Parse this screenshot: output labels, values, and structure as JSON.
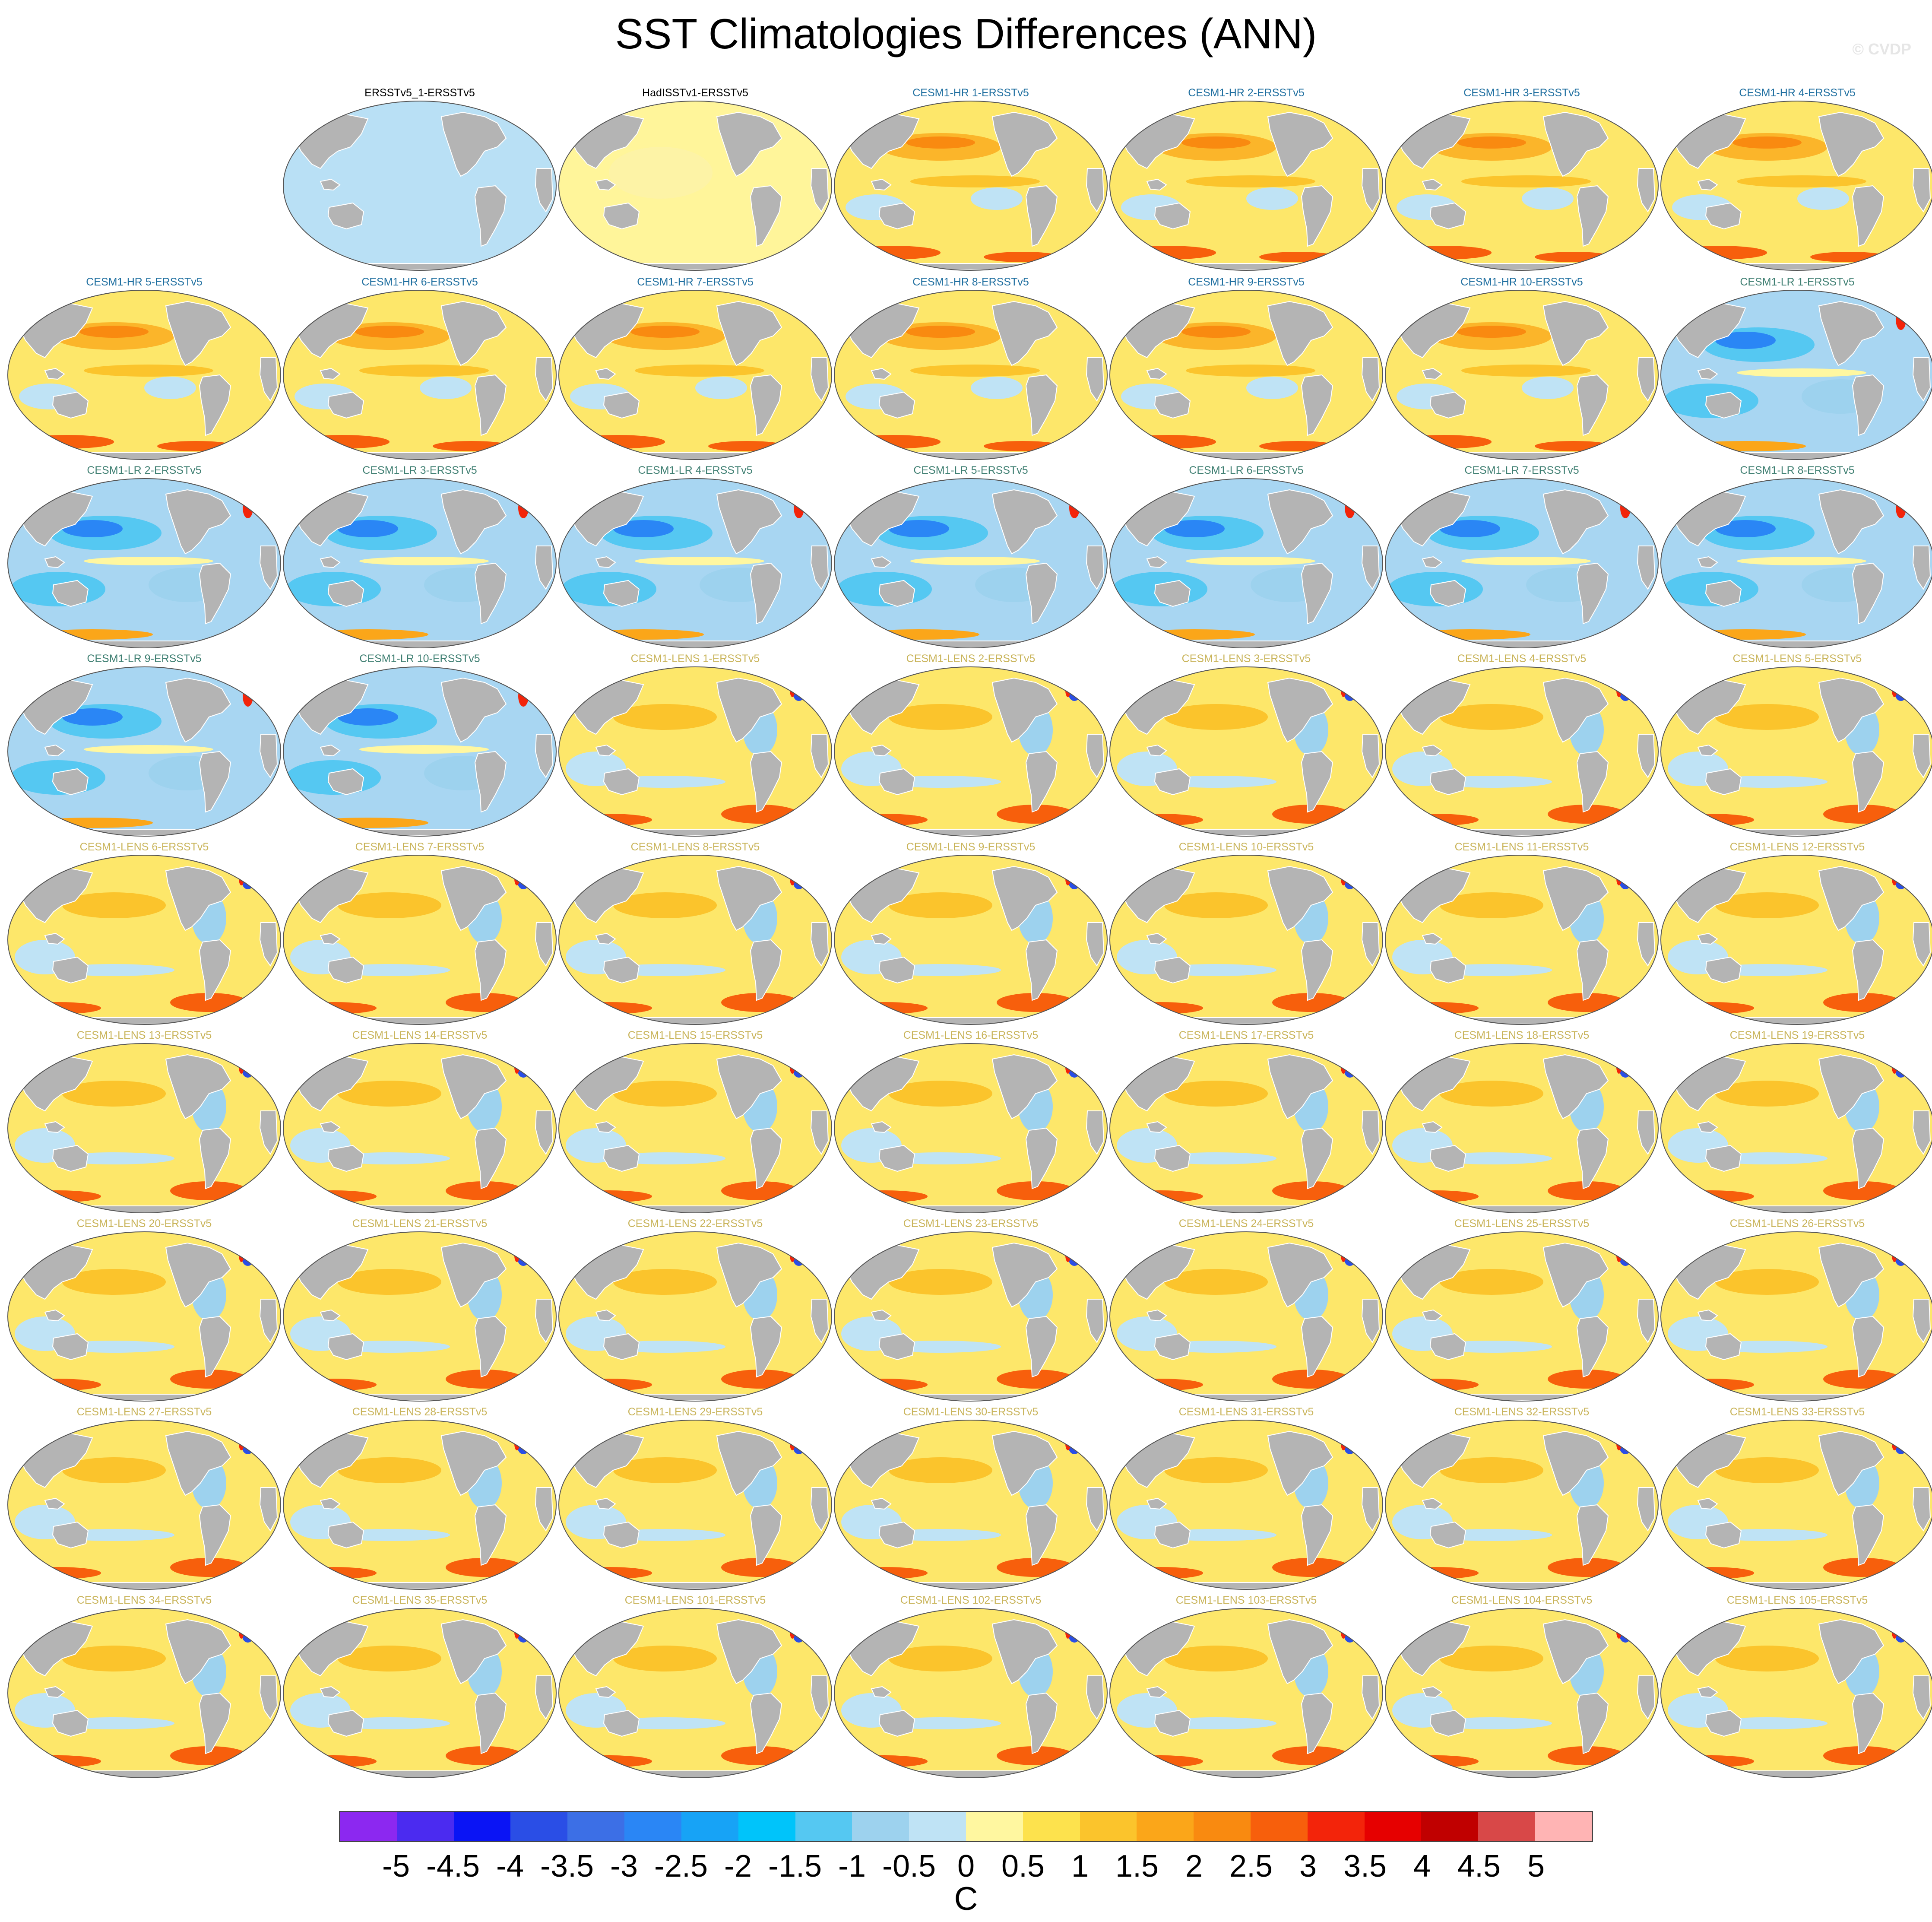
{
  "title": "SST Climatologies Differences (ANN)",
  "watermark": "© CVDP",
  "panel_grid": {
    "columns": 7,
    "rows": 9,
    "first_row_start_column": 1
  },
  "panel_classes": {
    "obs": {
      "title_color": "#000000",
      "ocean_base": "#b9e0f5"
    },
    "obs2": {
      "title_color": "#000000",
      "ocean_base": "#fff59a"
    },
    "hr": {
      "title_color": "#1f6fa0",
      "ocean_base": "#fde76a"
    },
    "lr": {
      "title_color": "#3f7f72",
      "ocean_base": "#a8d6f2"
    },
    "lens": {
      "title_color": "#c9b45a",
      "ocean_base": "#fde76a"
    }
  },
  "panels": [
    {
      "title": "ERSSTv5_1-ERSSTv5",
      "class": "obs"
    },
    {
      "title": "HadISSTv1-ERSSTv5",
      "class": "obs2"
    },
    {
      "title": "CESM1-HR 1-ERSSTv5",
      "class": "hr"
    },
    {
      "title": "CESM1-HR 2-ERSSTv5",
      "class": "hr"
    },
    {
      "title": "CESM1-HR 3-ERSSTv5",
      "class": "hr"
    },
    {
      "title": "CESM1-HR 4-ERSSTv5",
      "class": "hr"
    },
    {
      "title": "CESM1-HR 5-ERSSTv5",
      "class": "hr"
    },
    {
      "title": "CESM1-HR 6-ERSSTv5",
      "class": "hr"
    },
    {
      "title": "CESM1-HR 7-ERSSTv5",
      "class": "hr"
    },
    {
      "title": "CESM1-HR 8-ERSSTv5",
      "class": "hr"
    },
    {
      "title": "CESM1-HR 9-ERSSTv5",
      "class": "hr"
    },
    {
      "title": "CESM1-HR 10-ERSSTv5",
      "class": "hr"
    },
    {
      "title": "CESM1-LR 1-ERSSTv5",
      "class": "lr"
    },
    {
      "title": "CESM1-LR 2-ERSSTv5",
      "class": "lr"
    },
    {
      "title": "CESM1-LR 3-ERSSTv5",
      "class": "lr"
    },
    {
      "title": "CESM1-LR 4-ERSSTv5",
      "class": "lr"
    },
    {
      "title": "CESM1-LR 5-ERSSTv5",
      "class": "lr"
    },
    {
      "title": "CESM1-LR 6-ERSSTv5",
      "class": "lr"
    },
    {
      "title": "CESM1-LR 7-ERSSTv5",
      "class": "lr"
    },
    {
      "title": "CESM1-LR 8-ERSSTv5",
      "class": "lr"
    },
    {
      "title": "CESM1-LR 9-ERSSTv5",
      "class": "lr"
    },
    {
      "title": "CESM1-LR 10-ERSSTv5",
      "class": "lr"
    },
    {
      "title": "CESM1-LENS 1-ERSSTv5",
      "class": "lens"
    },
    {
      "title": "CESM1-LENS 2-ERSSTv5",
      "class": "lens"
    },
    {
      "title": "CESM1-LENS 3-ERSSTv5",
      "class": "lens"
    },
    {
      "title": "CESM1-LENS 4-ERSSTv5",
      "class": "lens"
    },
    {
      "title": "CESM1-LENS 5-ERSSTv5",
      "class": "lens"
    },
    {
      "title": "CESM1-LENS 6-ERSSTv5",
      "class": "lens"
    },
    {
      "title": "CESM1-LENS 7-ERSSTv5",
      "class": "lens"
    },
    {
      "title": "CESM1-LENS 8-ERSSTv5",
      "class": "lens"
    },
    {
      "title": "CESM1-LENS 9-ERSSTv5",
      "class": "lens"
    },
    {
      "title": "CESM1-LENS 10-ERSSTv5",
      "class": "lens"
    },
    {
      "title": "CESM1-LENS 11-ERSSTv5",
      "class": "lens"
    },
    {
      "title": "CESM1-LENS 12-ERSSTv5",
      "class": "lens"
    },
    {
      "title": "CESM1-LENS 13-ERSSTv5",
      "class": "lens"
    },
    {
      "title": "CESM1-LENS 14-ERSSTv5",
      "class": "lens"
    },
    {
      "title": "CESM1-LENS 15-ERSSTv5",
      "class": "lens"
    },
    {
      "title": "CESM1-LENS 16-ERSSTv5",
      "class": "lens"
    },
    {
      "title": "CESM1-LENS 17-ERSSTv5",
      "class": "lens"
    },
    {
      "title": "CESM1-LENS 18-ERSSTv5",
      "class": "lens"
    },
    {
      "title": "CESM1-LENS 19-ERSSTv5",
      "class": "lens"
    },
    {
      "title": "CESM1-LENS 20-ERSSTv5",
      "class": "lens"
    },
    {
      "title": "CESM1-LENS 21-ERSSTv5",
      "class": "lens"
    },
    {
      "title": "CESM1-LENS 22-ERSSTv5",
      "class": "lens"
    },
    {
      "title": "CESM1-LENS 23-ERSSTv5",
      "class": "lens"
    },
    {
      "title": "CESM1-LENS 24-ERSSTv5",
      "class": "lens"
    },
    {
      "title": "CESM1-LENS 25-ERSSTv5",
      "class": "lens"
    },
    {
      "title": "CESM1-LENS 26-ERSSTv5",
      "class": "lens"
    },
    {
      "title": "CESM1-LENS 27-ERSSTv5",
      "class": "lens"
    },
    {
      "title": "CESM1-LENS 28-ERSSTv5",
      "class": "lens"
    },
    {
      "title": "CESM1-LENS 29-ERSSTv5",
      "class": "lens"
    },
    {
      "title": "CESM1-LENS 30-ERSSTv5",
      "class": "lens"
    },
    {
      "title": "CESM1-LENS 31-ERSSTv5",
      "class": "lens"
    },
    {
      "title": "CESM1-LENS 32-ERSSTv5",
      "class": "lens"
    },
    {
      "title": "CESM1-LENS 33-ERSSTv5",
      "class": "lens"
    },
    {
      "title": "CESM1-LENS 34-ERSSTv5",
      "class": "lens"
    },
    {
      "title": "CESM1-LENS 35-ERSSTv5",
      "class": "lens"
    },
    {
      "title": "CESM1-LENS 101-ERSSTv5",
      "class": "lens"
    },
    {
      "title": "CESM1-LENS 102-ERSSTv5",
      "class": "lens"
    },
    {
      "title": "CESM1-LENS 103-ERSSTv5",
      "class": "lens"
    },
    {
      "title": "CESM1-LENS 104-ERSSTv5",
      "class": "lens"
    },
    {
      "title": "CESM1-LENS 105-ERSSTv5",
      "class": "lens"
    }
  ],
  "colorbar": {
    "colors": [
      "#8c28f0",
      "#4b2bf0",
      "#0a14f5",
      "#2a4ee6",
      "#3c6fe6",
      "#2a86f5",
      "#17a3f6",
      "#00c4fa",
      "#55c8f2",
      "#9dd2ee",
      "#bfe3f5",
      "#fff7a0",
      "#fde24d",
      "#fbc42c",
      "#fba619",
      "#f98a10",
      "#f75f0c",
      "#f3240a",
      "#e60000",
      "#c00000",
      "#d84848",
      "#ffb4b4"
    ],
    "labels": [
      "-5",
      "-4.5",
      "-4",
      "-3.5",
      "-3",
      "-2.5",
      "-2",
      "-1.5",
      "-1",
      "-0.5",
      "0",
      "0.5",
      "1",
      "1.5",
      "2",
      "2.5",
      "3",
      "3.5",
      "4",
      "4.5",
      "5"
    ],
    "units": "C"
  },
  "map_colors": {
    "land": "#b4b4b4",
    "coast": "#ffffff",
    "frame": "#555555"
  }
}
